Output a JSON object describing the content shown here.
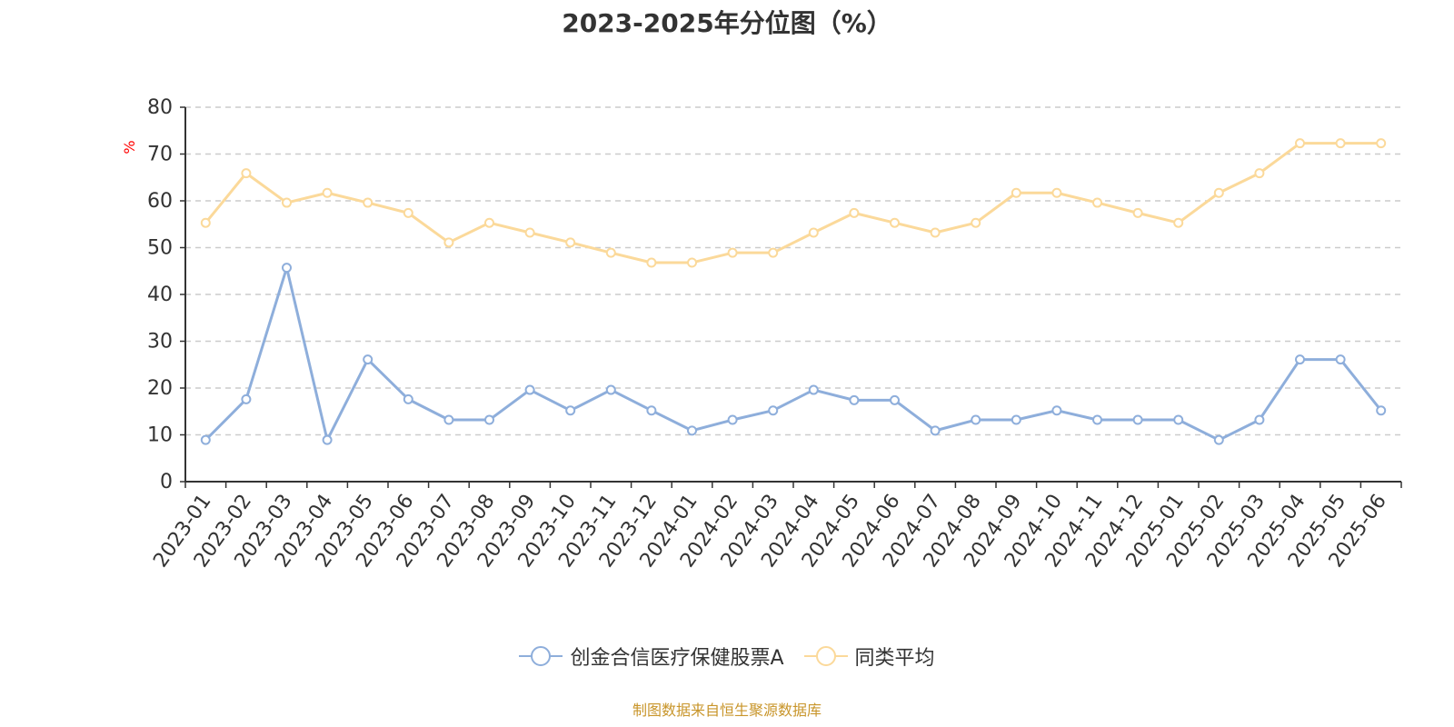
{
  "title": "2023-2025年分位图（%）",
  "source": "制图数据来自恒生聚源数据库",
  "chart_data": {
    "type": "line",
    "title": "2023-2025年分位图（%）",
    "ylabel": "%",
    "xlabel": "",
    "ylim": [
      0,
      80
    ],
    "yticks": [
      0,
      10,
      20,
      30,
      40,
      50,
      60,
      70,
      80
    ],
    "grid": true,
    "legend_position": "bottom",
    "categories": [
      "2023-01",
      "2023-02",
      "2023-03",
      "2023-04",
      "2023-05",
      "2023-06",
      "2023-07",
      "2023-08",
      "2023-09",
      "2023-10",
      "2023-11",
      "2023-12",
      "2024-01",
      "2024-02",
      "2024-03",
      "2024-04",
      "2024-05",
      "2024-06",
      "2024-07",
      "2024-08",
      "2024-09",
      "2024-10",
      "2024-11",
      "2024-12",
      "2025-01",
      "2025-02",
      "2025-03",
      "2025-04",
      "2025-05",
      "2025-06"
    ],
    "series": [
      {
        "name": "创金合信医疗保健股票A",
        "color": "#8eaedb",
        "values": [
          8.9,
          17.6,
          45.7,
          8.9,
          26.1,
          17.6,
          13.2,
          13.2,
          19.6,
          15.2,
          19.6,
          15.2,
          10.9,
          13.2,
          15.2,
          19.6,
          17.4,
          17.4,
          10.9,
          13.2,
          13.2,
          15.2,
          13.2,
          13.2,
          13.2,
          8.9,
          13.2,
          26.1,
          26.1,
          15.2
        ]
      },
      {
        "name": "同类平均",
        "color": "#fbd99a",
        "values": [
          55.3,
          65.9,
          59.6,
          61.7,
          59.6,
          57.4,
          51.1,
          55.3,
          53.2,
          51.1,
          48.9,
          46.8,
          46.8,
          48.9,
          48.9,
          53.2,
          57.4,
          55.3,
          53.2,
          55.3,
          61.7,
          61.7,
          59.6,
          57.4,
          55.3,
          61.7,
          65.9,
          72.3,
          72.3,
          72.3
        ]
      }
    ]
  }
}
